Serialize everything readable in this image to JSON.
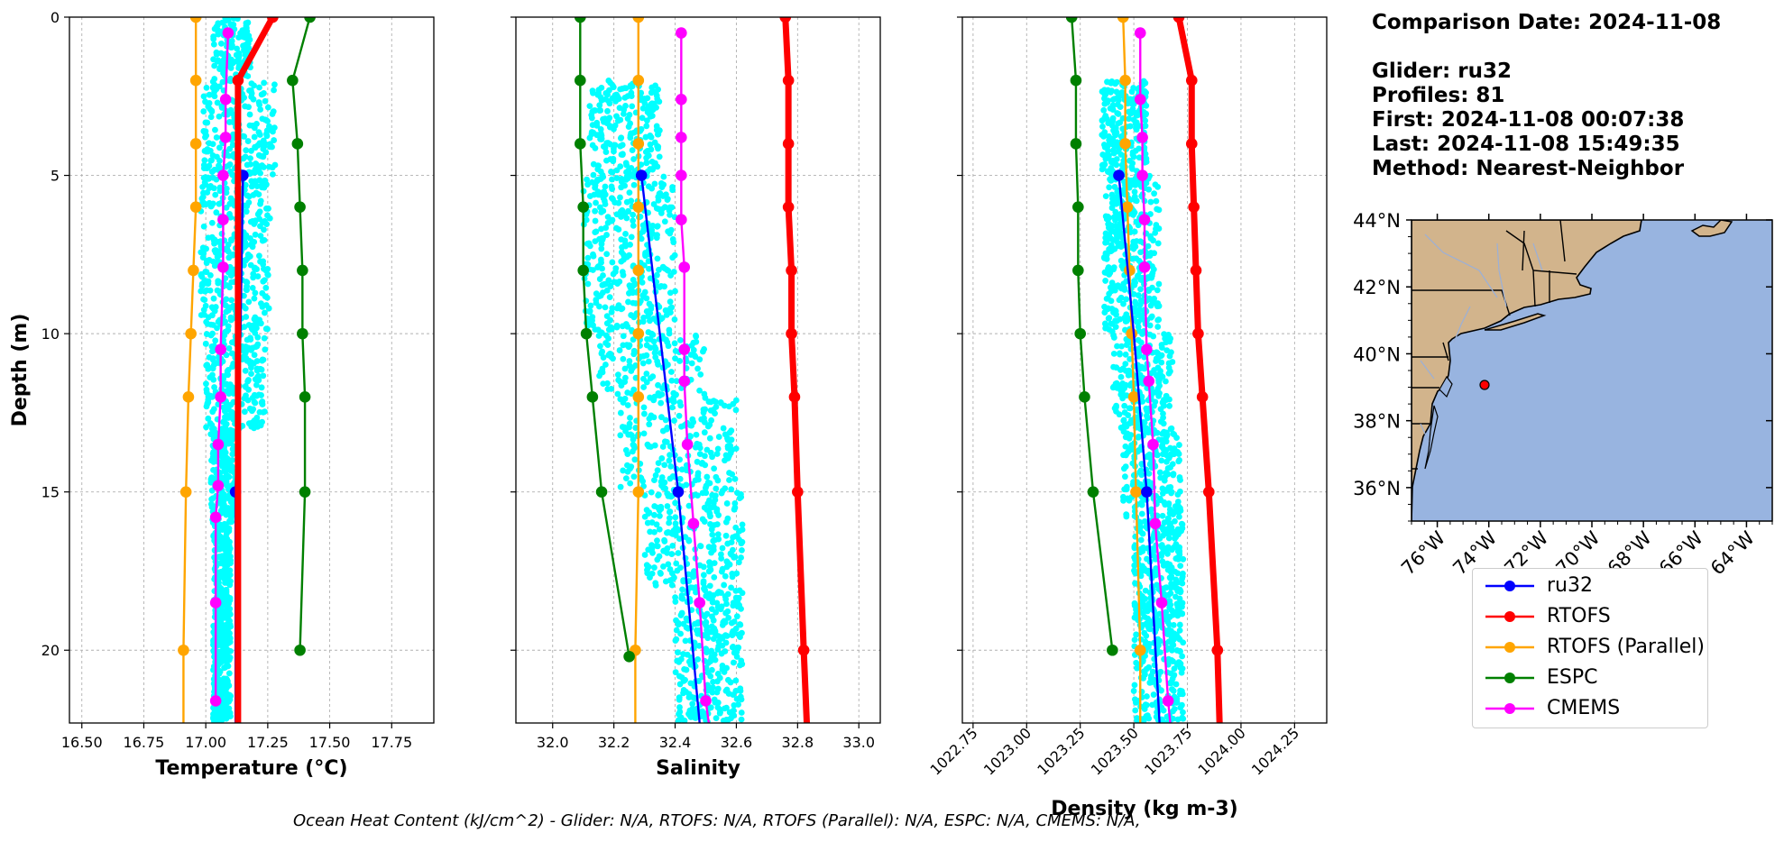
{
  "chart_data": [
    {
      "type": "line",
      "xlabel": "Temperature ($^{o}C$)",
      "xlabel_display": "Temperature (°C)",
      "ylabel": "Depth (m)",
      "xlim": [
        16.45,
        17.92
      ],
      "ylim": [
        22.3,
        0
      ],
      "xticks": [
        16.5,
        16.75,
        17.0,
        17.25,
        17.5,
        17.75
      ],
      "xtick_labels": [
        "16.50",
        "16.75",
        "17.00",
        "17.25",
        "17.50",
        "17.75"
      ],
      "yticks": [
        0,
        5,
        10,
        15,
        20
      ],
      "ytick_labels": [
        "0",
        "5",
        "10",
        "15",
        "20"
      ],
      "grid": true,
      "series": [
        {
          "name": "ru32",
          "color": "#0000ff",
          "marker_depths": [
            5,
            15
          ],
          "points": [
            [
              17.15,
              5
            ],
            [
              17.14,
              10
            ],
            [
              17.12,
              15
            ],
            [
              17.12,
              22.3
            ]
          ]
        },
        {
          "name": "RTOFS",
          "color": "#ff0000",
          "thick": true,
          "points": [
            [
              17.27,
              0
            ],
            [
              17.13,
              2
            ],
            [
              17.13,
              22.3
            ]
          ]
        },
        {
          "name": "RTOFS (Parallel)",
          "color": "#ffa500",
          "points": [
            [
              16.96,
              0
            ],
            [
              16.96,
              2
            ],
            [
              16.96,
              4
            ],
            [
              16.96,
              6
            ],
            [
              16.95,
              8
            ],
            [
              16.94,
              10
            ],
            [
              16.93,
              12
            ],
            [
              16.92,
              15
            ],
            [
              16.91,
              20
            ],
            [
              16.91,
              22.3
            ]
          ]
        },
        {
          "name": "ESPC",
          "color": "#008000",
          "points": [
            [
              17.42,
              0
            ],
            [
              17.35,
              2
            ],
            [
              17.37,
              4
            ],
            [
              17.38,
              6
            ],
            [
              17.39,
              8
            ],
            [
              17.39,
              10
            ],
            [
              17.4,
              12
            ],
            [
              17.4,
              15
            ],
            [
              17.38,
              20
            ]
          ]
        },
        {
          "name": "CMEMS",
          "color": "#ff00ff",
          "points": [
            [
              17.09,
              0.5
            ],
            [
              17.08,
              2.6
            ],
            [
              17.08,
              3.8
            ],
            [
              17.07,
              5
            ],
            [
              17.07,
              6.4
            ],
            [
              17.07,
              7.9
            ],
            [
              17.06,
              10.5
            ],
            [
              17.06,
              12
            ],
            [
              17.05,
              13.5
            ],
            [
              17.05,
              14.8
            ],
            [
              17.04,
              15.8
            ],
            [
              17.04,
              18.5
            ],
            [
              17.04,
              21.6
            ]
          ]
        }
      ]
    },
    {
      "type": "line",
      "xlabel": "Salinity",
      "xlim": [
        31.88,
        33.07
      ],
      "ylim": [
        22.3,
        0
      ],
      "xticks": [
        32.0,
        32.2,
        32.4,
        32.6,
        32.8,
        33.0
      ],
      "xtick_labels": [
        "32.0",
        "32.2",
        "32.4",
        "32.6",
        "32.8",
        "33.0"
      ],
      "yticks": [
        0,
        5,
        10,
        15,
        20
      ],
      "grid": true,
      "series": [
        {
          "name": "ru32",
          "color": "#0000ff",
          "marker_depths": [
            5,
            15
          ],
          "points": [
            [
              32.29,
              5
            ],
            [
              32.35,
              10
            ],
            [
              32.41,
              15
            ],
            [
              32.48,
              22.3
            ]
          ]
        },
        {
          "name": "RTOFS",
          "color": "#ff0000",
          "thick": true,
          "points": [
            [
              32.76,
              0
            ],
            [
              32.77,
              2
            ],
            [
              32.77,
              4
            ],
            [
              32.77,
              6
            ],
            [
              32.78,
              8
            ],
            [
              32.78,
              10
            ],
            [
              32.79,
              12
            ],
            [
              32.8,
              15
            ],
            [
              32.82,
              20
            ],
            [
              32.83,
              22.3
            ]
          ]
        },
        {
          "name": "RTOFS (Parallel)",
          "color": "#ffa500",
          "points": [
            [
              32.28,
              0
            ],
            [
              32.28,
              2
            ],
            [
              32.28,
              4
            ],
            [
              32.28,
              6
            ],
            [
              32.28,
              8
            ],
            [
              32.28,
              10
            ],
            [
              32.28,
              12
            ],
            [
              32.28,
              15
            ],
            [
              32.27,
              20
            ],
            [
              32.27,
              22.3
            ]
          ]
        },
        {
          "name": "ESPC",
          "color": "#008000",
          "points": [
            [
              32.09,
              0
            ],
            [
              32.09,
              2
            ],
            [
              32.09,
              4
            ],
            [
              32.1,
              6
            ],
            [
              32.1,
              8
            ],
            [
              32.11,
              10
            ],
            [
              32.13,
              12
            ],
            [
              32.16,
              15
            ],
            [
              32.25,
              20.2
            ]
          ]
        },
        {
          "name": "CMEMS",
          "color": "#ff00ff",
          "points": [
            [
              32.42,
              0.5
            ],
            [
              32.42,
              2.6
            ],
            [
              32.42,
              3.8
            ],
            [
              32.42,
              5
            ],
            [
              32.42,
              6.4
            ],
            [
              32.43,
              7.9
            ],
            [
              32.43,
              10.5
            ],
            [
              32.43,
              11.5
            ],
            [
              32.44,
              13.5
            ],
            [
              32.46,
              16
            ],
            [
              32.48,
              18.5
            ],
            [
              32.5,
              21.6
            ],
            [
              32.51,
              22.3
            ]
          ]
        }
      ]
    },
    {
      "type": "line",
      "xlabel": "Density (kg m-3)",
      "xlim": [
        1022.7,
        1024.4
      ],
      "ylim": [
        22.3,
        0
      ],
      "xticks": [
        1022.75,
        1023.0,
        1023.25,
        1023.5,
        1023.75,
        1024.0,
        1024.25
      ],
      "xtick_labels": [
        "1022.75",
        "1023.00",
        "1023.25",
        "1023.50",
        "1023.75",
        "1024.00",
        "1024.25"
      ],
      "yticks": [
        0,
        5,
        10,
        15,
        20
      ],
      "grid": true,
      "series": [
        {
          "name": "ru32",
          "color": "#0000ff",
          "marker_depths": [
            5,
            15
          ],
          "points": [
            [
              1023.43,
              5
            ],
            [
              1023.5,
              10
            ],
            [
              1023.56,
              15
            ],
            [
              1023.62,
              22.3
            ]
          ]
        },
        {
          "name": "RTOFS",
          "color": "#ff0000",
          "thick": true,
          "points": [
            [
              1023.71,
              0
            ],
            [
              1023.77,
              2
            ],
            [
              1023.77,
              4
            ],
            [
              1023.78,
              6
            ],
            [
              1023.79,
              8
            ],
            [
              1023.8,
              10
            ],
            [
              1023.82,
              12
            ],
            [
              1023.85,
              15
            ],
            [
              1023.89,
              20
            ],
            [
              1023.9,
              22.3
            ]
          ]
        },
        {
          "name": "RTOFS (Parallel)",
          "color": "#ffa500",
          "points": [
            [
              1023.45,
              0
            ],
            [
              1023.46,
              2
            ],
            [
              1023.46,
              4
            ],
            [
              1023.47,
              6
            ],
            [
              1023.48,
              8
            ],
            [
              1023.49,
              10
            ],
            [
              1023.5,
              12
            ],
            [
              1023.51,
              15
            ],
            [
              1023.53,
              20
            ],
            [
              1023.53,
              22.3
            ]
          ]
        },
        {
          "name": "ESPC",
          "color": "#008000",
          "points": [
            [
              1023.21,
              0
            ],
            [
              1023.23,
              2
            ],
            [
              1023.23,
              4
            ],
            [
              1023.24,
              6
            ],
            [
              1023.24,
              8
            ],
            [
              1023.25,
              10
            ],
            [
              1023.27,
              12
            ],
            [
              1023.31,
              15
            ],
            [
              1023.4,
              20
            ]
          ]
        },
        {
          "name": "CMEMS",
          "color": "#ff00ff",
          "points": [
            [
              1023.53,
              0.5
            ],
            [
              1023.53,
              2.6
            ],
            [
              1023.54,
              3.8
            ],
            [
              1023.54,
              5
            ],
            [
              1023.55,
              6.4
            ],
            [
              1023.55,
              7.9
            ],
            [
              1023.56,
              10.5
            ],
            [
              1023.57,
              11.5
            ],
            [
              1023.59,
              13.5
            ],
            [
              1023.6,
              16
            ],
            [
              1023.63,
              18.5
            ],
            [
              1023.66,
              21.6
            ],
            [
              1023.67,
              22.3
            ]
          ]
        }
      ]
    }
  ],
  "scatter_clouds": [
    {
      "color": "#00ffff",
      "bands": [
        [
          0,
          2,
          17.03,
          17.18
        ],
        [
          2,
          5,
          16.99,
          17.28
        ],
        [
          5,
          10,
          16.98,
          17.26
        ],
        [
          10,
          13,
          17.0,
          17.24
        ],
        [
          13,
          16,
          17.02,
          17.12
        ],
        [
          16,
          22.3,
          17.03,
          17.1
        ]
      ]
    },
    {
      "color": "#00ffff",
      "bands": [
        [
          2,
          5,
          32.12,
          32.35
        ],
        [
          5,
          10,
          32.1,
          32.4
        ],
        [
          10,
          12,
          32.15,
          32.5
        ],
        [
          12,
          15,
          32.22,
          32.6
        ],
        [
          15,
          18,
          32.3,
          32.62
        ],
        [
          18,
          22.3,
          32.4,
          32.62
        ]
      ]
    },
    {
      "color": "#00ffff",
      "bands": [
        [
          2,
          5,
          1023.35,
          1023.56
        ],
        [
          5,
          10,
          1023.36,
          1023.62
        ],
        [
          10,
          13,
          1023.4,
          1023.68
        ],
        [
          13,
          16,
          1023.45,
          1023.72
        ],
        [
          16,
          22.3,
          1023.5,
          1023.73
        ]
      ]
    }
  ],
  "info": {
    "comparison": "Comparison Date: 2024-11-08",
    "glider": "Glider: ru32",
    "profiles": "Profiles: 81",
    "first": "First: 2024-11-08 00:07:38",
    "last": "Last: 2024-11-08 15:49:35",
    "method": "Method: Nearest-Neighbor"
  },
  "map": {
    "lat_ticks": [
      "44°N",
      "42°N",
      "40°N",
      "38°N",
      "36°N"
    ],
    "lon_ticks": [
      "76°W",
      "74°W",
      "72°W",
      "70°W",
      "68°W",
      "66°W",
      "64°W"
    ],
    "lon_range": [
      -77,
      -63
    ],
    "lat_range": [
      35,
      44
    ],
    "glider_position": [
      -73.9,
      39.2
    ],
    "land_color": "#d2b48c",
    "ocean_color": "#98b4e0"
  },
  "legend": [
    "ru32",
    "RTOFS",
    "RTOFS (Parallel)",
    "ESPC",
    "CMEMS"
  ],
  "legend_colors": [
    "#0000ff",
    "#ff0000",
    "#ffa500",
    "#008000",
    "#ff00ff"
  ],
  "footer": "Ocean Heat Content (kJ/cm^2) - Glider: N/A,  RTOFS: N/A,  RTOFS (Parallel): N/A,  ESPC: N/A,  CMEMS: N/A,"
}
